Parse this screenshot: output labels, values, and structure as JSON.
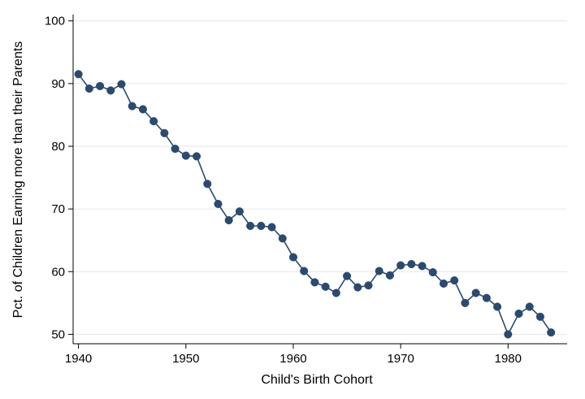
{
  "chart_data": {
    "type": "line",
    "title": "",
    "xlabel": "Child's Birth Cohort",
    "ylabel": "Pct. of Children Earning more than their Parents",
    "xlim": [
      1939.5,
      1985.5
    ],
    "ylim": [
      48.5,
      101
    ],
    "x_ticks": [
      1940,
      1950,
      1960,
      1970,
      1980
    ],
    "x_tick_labels": [
      "1940",
      "1950",
      "1960",
      "1970",
      "1980"
    ],
    "y_ticks": [
      50,
      60,
      70,
      80,
      90,
      100
    ],
    "y_tick_labels": [
      "50",
      "60",
      "70",
      "80",
      "90",
      "100"
    ],
    "grid": "horizontal",
    "legend": "none",
    "series": [
      {
        "color": "#2c4a6e",
        "x": [
          1940,
          1941,
          1942,
          1943,
          1944,
          1945,
          1946,
          1947,
          1948,
          1949,
          1950,
          1951,
          1952,
          1953,
          1954,
          1955,
          1956,
          1957,
          1958,
          1959,
          1960,
          1961,
          1962,
          1963,
          1964,
          1965,
          1966,
          1967,
          1968,
          1969,
          1970,
          1971,
          1972,
          1973,
          1974,
          1975,
          1976,
          1977,
          1978,
          1979,
          1980,
          1981,
          1982,
          1983,
          1984
        ],
        "y": [
          91.5,
          89.2,
          89.6,
          88.9,
          89.9,
          86.4,
          85.9,
          84.0,
          82.1,
          79.6,
          78.5,
          78.4,
          74.0,
          70.8,
          68.2,
          69.6,
          67.3,
          67.3,
          67.1,
          65.3,
          62.3,
          60.1,
          58.3,
          57.6,
          56.6,
          59.3,
          57.5,
          57.8,
          60.1,
          59.4,
          61.0,
          61.2,
          60.9,
          59.9,
          58.1,
          58.6,
          55.0,
          56.6,
          55.8,
          54.4,
          50.0,
          53.3,
          54.4,
          52.8,
          50.3
        ]
      }
    ]
  }
}
